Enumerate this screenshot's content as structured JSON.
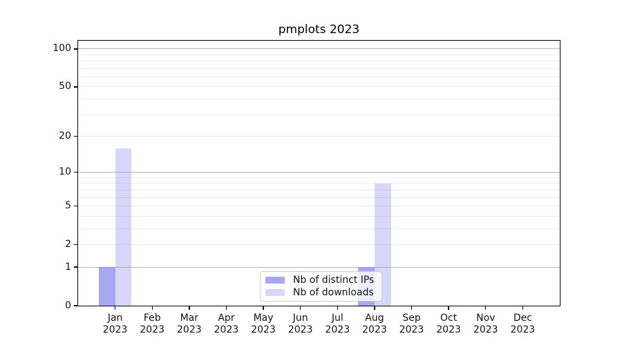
{
  "chart_data": {
    "type": "bar",
    "title": "pmplots 2023",
    "categories": [
      "Jan 2023",
      "Feb 2023",
      "Mar 2023",
      "Apr 2023",
      "May 2023",
      "Jun 2023",
      "Jul 2023",
      "Aug 2023",
      "Sep 2023",
      "Oct 2023",
      "Nov 2023",
      "Dec 2023"
    ],
    "series": [
      {
        "name": "Nb of distinct IPs",
        "color": "rgba(137,137,240,0.75)",
        "values": [
          1,
          0,
          0,
          0,
          0,
          0,
          0,
          1,
          0,
          0,
          0,
          0
        ]
      },
      {
        "name": "Nb of downloads",
        "color": "rgba(137,137,240,0.34)",
        "values": [
          16,
          0,
          0,
          0,
          0,
          0,
          0,
          8,
          0,
          0,
          0,
          0
        ]
      }
    ],
    "yscale": "log1p",
    "ylim": [
      0,
      116
    ],
    "yticks": [
      0,
      1,
      2,
      5,
      10,
      20,
      50,
      100
    ],
    "grid": {
      "major": [
        1,
        10,
        100
      ],
      "minor": [
        2,
        3,
        4,
        5,
        6,
        7,
        8,
        9,
        20,
        30,
        40,
        50,
        60,
        70,
        80,
        90
      ]
    },
    "xlabel": "",
    "ylabel": "",
    "legend_position": "lower center",
    "legend_visible": true
  },
  "colors": {
    "major_grid": "#b3b3b3",
    "minor_grid": "#ececec",
    "spine": "#000000",
    "text": "#111111",
    "legend_border": "#cccccc",
    "legend_bg": "rgba(255,255,255,0.8)"
  }
}
